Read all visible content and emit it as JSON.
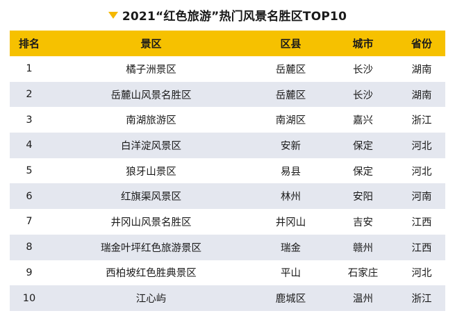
{
  "title": "2021“红色旅游”热门风景名胜区TOP10",
  "colors": {
    "header_bg": "#f6c100",
    "arrow": "#f5b800",
    "alt_row": "#e4e7ef"
  },
  "table": {
    "headers": [
      "排名",
      "景区",
      "区县",
      "城市",
      "省份"
    ],
    "rows": [
      [
        "1",
        "橘子洲景区",
        "岳麓区",
        "长沙",
        "湖南"
      ],
      [
        "2",
        "岳麓山风景名胜区",
        "岳麓区",
        "长沙",
        "湖南"
      ],
      [
        "3",
        "南湖旅游区",
        "南湖区",
        "嘉兴",
        "浙江"
      ],
      [
        "4",
        "白洋淀风景区",
        "安新",
        "保定",
        "河北"
      ],
      [
        "5",
        "狼牙山景区",
        "易县",
        "保定",
        "河北"
      ],
      [
        "6",
        "红旗渠风景区",
        "林州",
        "安阳",
        "河南"
      ],
      [
        "7",
        "井冈山风景名胜区",
        "井冈山",
        "吉安",
        "江西"
      ],
      [
        "8",
        "瑞金叶坪红色旅游景区",
        "瑞金",
        "赣州",
        "江西"
      ],
      [
        "9",
        "西柏坡红色胜典景区",
        "平山",
        "石家庄",
        "河北"
      ],
      [
        "10",
        "江心屿",
        "鹿城区",
        "温州",
        "浙江"
      ]
    ]
  }
}
